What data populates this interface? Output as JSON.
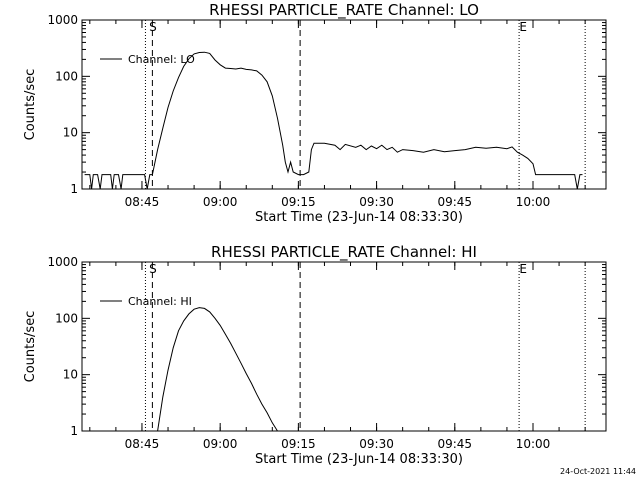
{
  "chart_data": [
    {
      "type": "line",
      "title": "RHESSI PARTICLE_RATE Channel: LO",
      "xlabel": "Start Time (23-Jun-14 08:33:30)",
      "ylabel": "Counts/sec",
      "y_scale": "log",
      "ylim": [
        1,
        1000
      ],
      "xlim": [
        "08:33:30",
        "10:14:00"
      ],
      "x_ticks": [
        "08:45",
        "09:00",
        "09:15",
        "09:30",
        "09:45",
        "10:00"
      ],
      "y_ticks": [
        "1",
        "10",
        "100",
        "1000"
      ],
      "legend": "top-left",
      "series": [
        {
          "name": "Channel: LO",
          "points": [
            [
              "08:34:00",
              1.8
            ],
            [
              "08:35:00",
              1.8
            ],
            [
              "08:35:20",
              1
            ],
            [
              "08:35:40",
              1.8
            ],
            [
              "08:36:30",
              1.8
            ],
            [
              "08:37:00",
              1
            ],
            [
              "08:37:20",
              1.8
            ],
            [
              "08:39:00",
              1.8
            ],
            [
              "08:39:20",
              1
            ],
            [
              "08:39:40",
              1.8
            ],
            [
              "08:40:30",
              1.8
            ],
            [
              "08:41:00",
              1
            ],
            [
              "08:41:20",
              1.8
            ],
            [
              "08:45:30",
              1.8
            ],
            [
              "08:46:00",
              1
            ],
            [
              "08:46:30",
              1.8
            ],
            [
              "08:47:00",
              1.8
            ],
            [
              "08:47:30",
              3
            ],
            [
              "08:48:00",
              5
            ],
            [
              "08:49:00",
              12
            ],
            [
              "08:50:00",
              28
            ],
            [
              "08:51:00",
              55
            ],
            [
              "08:52:00",
              95
            ],
            [
              "08:53:00",
              150
            ],
            [
              "08:54:00",
              205
            ],
            [
              "08:55:00",
              250
            ],
            [
              "08:56:00",
              265
            ],
            [
              "08:57:00",
              268
            ],
            [
              "08:58:00",
              255
            ],
            [
              "08:59:00",
              195
            ],
            [
              "09:00:00",
              160
            ],
            [
              "09:01:00",
              140
            ],
            [
              "09:02:00",
              138
            ],
            [
              "09:03:00",
              135
            ],
            [
              "09:04:00",
              140
            ],
            [
              "09:05:00",
              133
            ],
            [
              "09:06:00",
              130
            ],
            [
              "09:07:00",
              125
            ],
            [
              "09:08:00",
              105
            ],
            [
              "09:09:00",
              80
            ],
            [
              "09:10:00",
              45
            ],
            [
              "09:11:00",
              18
            ],
            [
              "09:12:00",
              6
            ],
            [
              "09:12:30",
              3
            ],
            [
              "09:13:00",
              2
            ],
            [
              "09:13:30",
              3
            ],
            [
              "09:14:00",
              2
            ],
            [
              "09:15:00",
              1.8
            ],
            [
              "09:16:00",
              1.8
            ],
            [
              "09:17:00",
              2
            ],
            [
              "09:17:30",
              5
            ],
            [
              "09:18:00",
              6.5
            ],
            [
              "09:20:00",
              6.5
            ],
            [
              "09:22:00",
              6
            ],
            [
              "09:23:00",
              5
            ],
            [
              "09:24:00",
              6.2
            ],
            [
              "09:26:00",
              5.5
            ],
            [
              "09:27:00",
              6
            ],
            [
              "09:28:00",
              5
            ],
            [
              "09:29:00",
              5.8
            ],
            [
              "09:30:00",
              5.2
            ],
            [
              "09:31:00",
              6
            ],
            [
              "09:32:00",
              5
            ],
            [
              "09:33:00",
              5.5
            ],
            [
              "09:34:00",
              4.5
            ],
            [
              "09:35:00",
              5
            ],
            [
              "09:37:00",
              4.8
            ],
            [
              "09:39:00",
              4.5
            ],
            [
              "09:41:00",
              5
            ],
            [
              "09:43:00",
              4.6
            ],
            [
              "09:45:00",
              4.8
            ],
            [
              "09:47:00",
              5
            ],
            [
              "09:49:00",
              5.5
            ],
            [
              "09:51:00",
              5.3
            ],
            [
              "09:53:00",
              5.5
            ],
            [
              "09:55:00",
              5.2
            ],
            [
              "09:56:00",
              5.6
            ],
            [
              "09:57:00",
              4.5
            ],
            [
              "09:58:00",
              4
            ],
            [
              "09:59:00",
              3.5
            ],
            [
              "10:00:00",
              2.8
            ],
            [
              "10:00:30",
              1.8
            ],
            [
              "10:08:00",
              1.8
            ],
            [
              "10:08:30",
              1
            ],
            [
              "10:09:00",
              1.8
            ],
            [
              "10:09:30",
              1.8
            ]
          ]
        }
      ],
      "annotations": [
        {
          "text": "S",
          "time": "08:46:00"
        },
        {
          "text": "E",
          "time": "09:57:00"
        }
      ],
      "markers": {
        "dotted": [
          "08:45:40",
          "09:57:20",
          "10:10:00"
        ],
        "dashed": [
          "08:47:00",
          "09:15:20"
        ]
      }
    },
    {
      "type": "line",
      "title": "RHESSI PARTICLE_RATE Channel: HI",
      "xlabel": "Start Time (23-Jun-14 08:33:30)",
      "ylabel": "Counts/sec",
      "y_scale": "log",
      "ylim": [
        1,
        1000
      ],
      "xlim": [
        "08:33:30",
        "10:14:00"
      ],
      "x_ticks": [
        "08:45",
        "09:00",
        "09:15",
        "09:30",
        "09:45",
        "10:00"
      ],
      "y_ticks": [
        "1",
        "10",
        "100",
        "1000"
      ],
      "legend": "top-left",
      "series": [
        {
          "name": "Channel: HI",
          "points": [
            [
              "08:48:00",
              1
            ],
            [
              "08:49:00",
              4
            ],
            [
              "08:50:00",
              12
            ],
            [
              "08:51:00",
              30
            ],
            [
              "08:52:00",
              60
            ],
            [
              "08:53:00",
              90
            ],
            [
              "08:54:00",
              120
            ],
            [
              "08:55:00",
              145
            ],
            [
              "08:56:00",
              155
            ],
            [
              "08:57:00",
              150
            ],
            [
              "08:58:00",
              130
            ],
            [
              "08:59:00",
              100
            ],
            [
              "09:00:00",
              75
            ],
            [
              "09:01:00",
              52
            ],
            [
              "09:02:00",
              36
            ],
            [
              "09:03:00",
              24
            ],
            [
              "09:04:00",
              16
            ],
            [
              "09:05:00",
              10.5
            ],
            [
              "09:06:00",
              7
            ],
            [
              "09:07:00",
              4.5
            ],
            [
              "09:08:00",
              3
            ],
            [
              "09:09:00",
              2.1
            ],
            [
              "09:10:00",
              1.4
            ],
            [
              "09:11:00",
              1
            ]
          ]
        }
      ],
      "annotations": [
        {
          "text": "S",
          "time": "08:46:00"
        },
        {
          "text": "E",
          "time": "09:57:00"
        }
      ],
      "markers": {
        "dotted": [
          "08:45:40",
          "09:57:20",
          "10:10:00"
        ],
        "dashed": [
          "08:47:00",
          "09:15:20"
        ]
      }
    }
  ],
  "timestamp": "24-Oct-2021 11:44"
}
